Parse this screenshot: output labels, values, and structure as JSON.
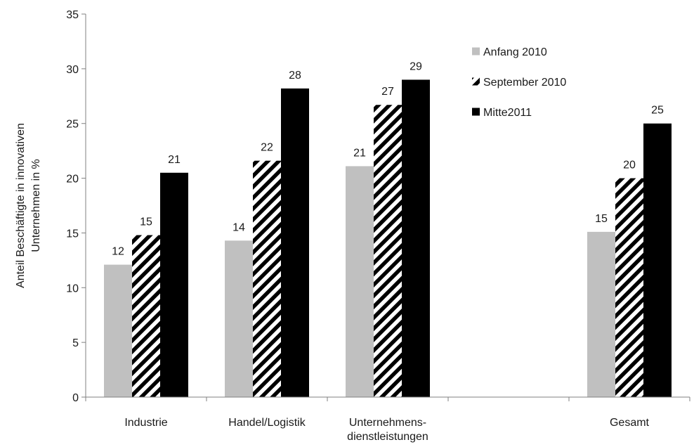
{
  "chart_data": {
    "type": "bar",
    "categories": [
      "Industrie",
      "Handel/Logistik",
      "Unternehmens-\ndienstleistungen",
      "",
      "Gesamt"
    ],
    "series": [
      {
        "name": "Anfang 2010",
        "values": [
          12.1,
          14.3,
          21.1,
          null,
          15.1
        ],
        "labels": [
          "12",
          "14",
          "21",
          "",
          "15"
        ],
        "color": "#c0c0c0",
        "pattern": "solid"
      },
      {
        "name": "September 2010",
        "values": [
          14.8,
          21.6,
          26.7,
          null,
          20.0
        ],
        "labels": [
          "15",
          "22",
          "27",
          "",
          "20"
        ],
        "color": "#000000",
        "pattern": "diagonal-stripes"
      },
      {
        "name": "Mitte2011",
        "values": [
          20.5,
          28.2,
          29.0,
          null,
          25.0
        ],
        "labels": [
          "21",
          "28",
          "29",
          "",
          "25"
        ],
        "color": "#000000",
        "pattern": "solid"
      }
    ],
    "ylabel": "Anteil Beschäftigte in innovativen\nUnternehmen in %",
    "ylim": [
      0,
      35
    ],
    "yticks": [
      0,
      5,
      10,
      15,
      20,
      25,
      30,
      35
    ],
    "grid": false,
    "legend_position": "top-right"
  }
}
